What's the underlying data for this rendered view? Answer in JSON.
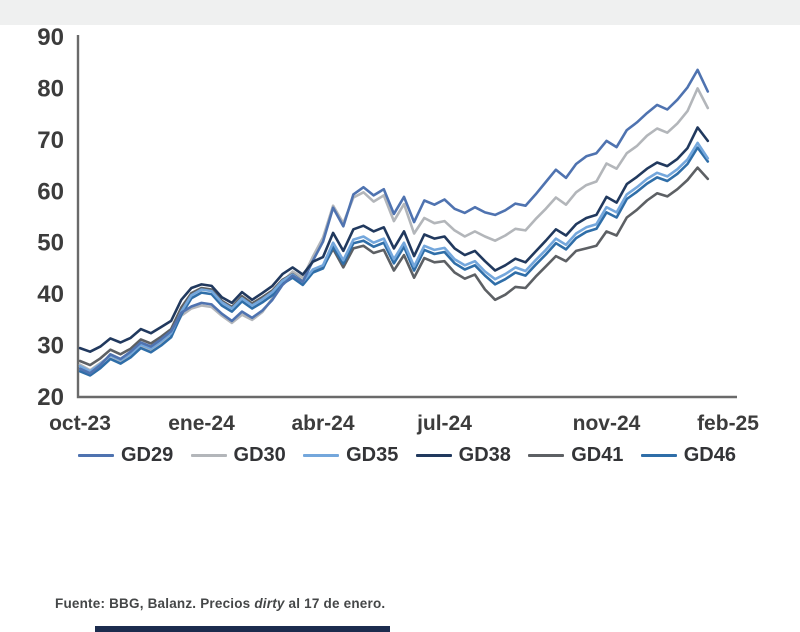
{
  "page": {
    "top_band_color": "#eff0f0",
    "background": "#ffffff",
    "bottom_bar_color": "#1c2c4e"
  },
  "chart_data": {
    "type": "line",
    "title": "",
    "xlabel": "",
    "ylabel": "",
    "grid": false,
    "legend_position": "bottom",
    "axis_color": "#6a6a6a",
    "tick_label_color": "#3c3c3c",
    "y_axis": {
      "min": 20,
      "max": 90,
      "ticks": [
        90,
        80,
        70,
        60,
        50,
        40,
        30,
        20
      ]
    },
    "x_axis": {
      "tick_labels": [
        "oct-23",
        "ene-24",
        "abr-24",
        "jul-24",
        "nov-24",
        "feb-25"
      ],
      "tick_months": [
        0,
        3,
        6,
        9,
        13,
        16
      ]
    },
    "sampling": {
      "start_month": 0,
      "step_months": 0.25,
      "note": "months after oct-2023, data ends 17-ene-2025"
    },
    "series": [
      {
        "name": "GD29",
        "color": "#4f73b0",
        "values": [
          25.5,
          24.6,
          26.2,
          28.3,
          27.4,
          28.8,
          30.6,
          29.8,
          31.2,
          32.8,
          36.4,
          37.6,
          38.3,
          38.0,
          36.2,
          34.8,
          36.6,
          35.4,
          36.8,
          38.9,
          41.8,
          43.6,
          42.4,
          46.5,
          50.2,
          56.8,
          53.2,
          59.4,
          60.8,
          59.2,
          60.4,
          55.6,
          58.9,
          54.0,
          58.2,
          57.4,
          58.4,
          56.6,
          55.8,
          56.9,
          55.9,
          55.4,
          56.3,
          57.6,
          57.2,
          59.4,
          61.8,
          64.2,
          62.6,
          65.3,
          66.8,
          67.4,
          69.8,
          68.6,
          71.9,
          73.4,
          75.2,
          76.8,
          75.9,
          77.8,
          80.2,
          83.6,
          79.4
        ]
      },
      {
        "name": "GD30",
        "color": "#b3b6ba",
        "values": [
          26.3,
          25.2,
          26.6,
          28.0,
          27.0,
          28.2,
          30.0,
          29.2,
          30.6,
          32.2,
          35.8,
          37.2,
          37.8,
          37.5,
          35.8,
          34.4,
          36.0,
          35.0,
          36.5,
          39.2,
          42.4,
          44.4,
          43.2,
          47.3,
          51.0,
          57.2,
          53.8,
          58.8,
          59.8,
          58.0,
          59.2,
          54.2,
          57.5,
          51.8,
          54.8,
          53.8,
          54.2,
          52.4,
          51.2,
          52.2,
          51.2,
          50.4,
          51.4,
          52.7,
          52.4,
          54.6,
          56.6,
          58.8,
          57.4,
          59.8,
          61.2,
          61.9,
          65.4,
          64.4,
          67.4,
          68.8,
          70.8,
          72.2,
          71.4,
          73.2,
          75.6,
          80.0,
          76.2
        ]
      },
      {
        "name": "GD35",
        "color": "#74a7dc",
        "values": [
          26.0,
          25.0,
          26.4,
          28.1,
          27.2,
          28.4,
          30.2,
          29.4,
          30.8,
          32.4,
          36.6,
          39.8,
          40.9,
          40.6,
          38.4,
          37.2,
          39.2,
          37.8,
          39.0,
          40.4,
          42.6,
          43.8,
          42.4,
          44.8,
          45.6,
          50.0,
          46.6,
          50.6,
          51.2,
          50.0,
          50.8,
          46.8,
          50.0,
          45.4,
          49.4,
          48.6,
          49.0,
          46.8,
          45.6,
          46.4,
          44.4,
          42.9,
          43.9,
          45.2,
          44.5,
          46.6,
          48.6,
          50.8,
          49.6,
          51.8,
          53.0,
          53.6,
          56.9,
          55.9,
          59.4,
          60.8,
          62.4,
          63.6,
          62.9,
          64.3,
          66.2,
          69.4,
          66.4
        ]
      },
      {
        "name": "GD38",
        "color": "#21395e",
        "values": [
          29.5,
          28.8,
          29.8,
          31.4,
          30.6,
          31.5,
          33.2,
          32.4,
          33.6,
          34.8,
          38.9,
          41.2,
          41.9,
          41.6,
          39.4,
          38.3,
          40.4,
          38.9,
          40.2,
          41.6,
          43.9,
          45.2,
          43.8,
          46.3,
          47.2,
          51.9,
          48.4,
          52.6,
          53.3,
          52.2,
          53.0,
          48.9,
          52.2,
          47.4,
          51.6,
          50.8,
          51.2,
          48.9,
          47.6,
          48.4,
          46.4,
          44.6,
          45.6,
          46.9,
          46.2,
          48.3,
          50.4,
          52.6,
          51.4,
          53.6,
          54.8,
          55.4,
          58.9,
          57.8,
          61.4,
          62.8,
          64.4,
          65.6,
          64.9,
          66.3,
          68.4,
          72.4,
          69.8
        ]
      },
      {
        "name": "GD41",
        "color": "#5d6064",
        "values": [
          27.0,
          26.2,
          27.5,
          29.2,
          28.3,
          29.4,
          31.2,
          30.4,
          31.7,
          33.2,
          37.4,
          40.2,
          41.2,
          40.9,
          38.7,
          37.5,
          39.6,
          38.2,
          39.4,
          40.7,
          42.8,
          43.9,
          42.5,
          44.6,
          45.2,
          48.8,
          45.2,
          48.9,
          49.4,
          48.0,
          48.6,
          44.6,
          47.6,
          43.2,
          47.0,
          46.2,
          46.4,
          44.2,
          43.0,
          43.8,
          40.9,
          38.9,
          39.9,
          41.4,
          41.2,
          43.4,
          45.4,
          47.4,
          46.4,
          48.4,
          48.9,
          49.4,
          52.2,
          51.4,
          54.9,
          56.4,
          58.2,
          59.6,
          59.0,
          60.4,
          62.2,
          64.6,
          62.4
        ]
      },
      {
        "name": "GD46",
        "color": "#2f6ea8",
        "values": [
          25.0,
          24.2,
          25.6,
          27.4,
          26.5,
          27.7,
          29.5,
          28.7,
          30.0,
          31.6,
          36.0,
          39.2,
          40.3,
          40.0,
          37.8,
          36.6,
          38.6,
          37.2,
          38.4,
          39.8,
          42.0,
          43.2,
          41.8,
          44.2,
          45.0,
          49.2,
          45.9,
          49.9,
          50.4,
          49.2,
          50.0,
          46.0,
          49.2,
          44.6,
          48.6,
          47.8,
          48.2,
          46.0,
          44.8,
          45.6,
          43.6,
          41.9,
          42.9,
          44.2,
          43.6,
          45.7,
          47.7,
          49.9,
          48.7,
          50.9,
          52.1,
          52.7,
          55.9,
          54.9,
          58.5,
          59.9,
          61.5,
          62.7,
          62.0,
          63.4,
          65.3,
          68.5,
          65.8
        ]
      }
    ]
  },
  "footer": {
    "text_prefix": "Fuente: BBG, Balanz. Precios ",
    "text_italic": "dirty",
    "text_suffix": " al 17 de enero."
  }
}
